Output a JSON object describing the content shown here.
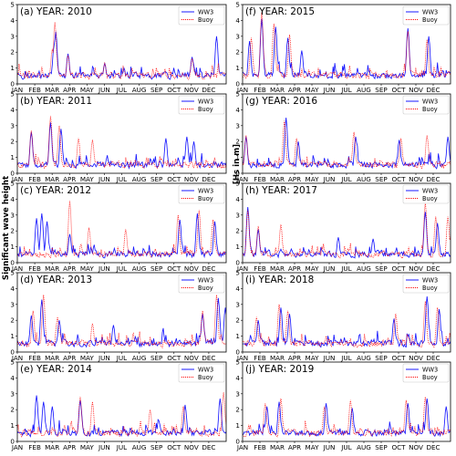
{
  "figure": {
    "ylabel_left": "Significant wave height",
    "ylabel_right": "[Hs in m]"
  },
  "chart_data": [
    {
      "type": "line",
      "title": "(a) YEAR: 2010",
      "categories": [
        "JAN",
        "FEB",
        "MAR",
        "APR",
        "MAY",
        "JUN",
        "JUL",
        "AUG",
        "SEP",
        "OCT",
        "NOV",
        "DEC"
      ],
      "y_ticks": [
        "0",
        "1",
        "2",
        "3",
        "4",
        "5"
      ],
      "ylim": [
        0,
        5
      ],
      "legend": "top-right",
      "series": [
        {
          "name": "WW3",
          "color": "#0000ff",
          "style": "solid",
          "peaks": [
            [
              2.1,
              2.4
            ],
            [
              2.2,
              3.3
            ],
            [
              2.9,
              1.9
            ],
            [
              5.0,
              1.3
            ],
            [
              10.0,
              1.7
            ],
            [
              11.4,
              3.0
            ]
          ]
        },
        {
          "name": "Buoy",
          "color": "#ff0000",
          "style": "dotted",
          "peaks": [
            [
              2.0,
              2.2
            ],
            [
              2.15,
              3.9
            ],
            [
              2.9,
              1.8
            ],
            [
              5.0,
              1.3
            ],
            [
              10.0,
              1.6
            ]
          ]
        }
      ]
    },
    {
      "type": "line",
      "title": "(f) YEAR: 2015",
      "categories": [
        "JAN",
        "FEB",
        "MAR",
        "APR",
        "MAY",
        "JUN",
        "JUL",
        "AUG",
        "SEP",
        "OCT",
        "NOV",
        "DEC"
      ],
      "y_ticks": [
        "0",
        "1",
        "2",
        "3",
        "4",
        "5"
      ],
      "ylim": [
        0,
        5
      ],
      "legend": "top-right",
      "series": [
        {
          "name": "WW3",
          "color": "#0000ff",
          "style": "solid",
          "peaks": [
            [
              0.4,
              2.7
            ],
            [
              1.1,
              4.1
            ],
            [
              1.9,
              3.6
            ],
            [
              2.6,
              2.9
            ],
            [
              3.4,
              2.1
            ],
            [
              9.5,
              3.5
            ],
            [
              10.7,
              3.0
            ]
          ]
        },
        {
          "name": "Buoy",
          "color": "#ff0000",
          "style": "dotted",
          "peaks": [
            [
              0.5,
              2.9
            ],
            [
              1.1,
              4.5
            ],
            [
              1.8,
              3.8
            ],
            [
              2.7,
              3.1
            ],
            [
              9.5,
              3.3
            ],
            [
              10.6,
              2.8
            ]
          ]
        }
      ]
    },
    {
      "type": "line",
      "title": "(b) YEAR: 2011",
      "categories": [
        "JAN",
        "FEB",
        "MAR",
        "APR",
        "MAY",
        "JUN",
        "JUL",
        "AUG",
        "SEP",
        "OCT",
        "NOV",
        "DEC"
      ],
      "y_ticks": [
        "0",
        "1",
        "2",
        "3",
        "4",
        "5"
      ],
      "ylim": [
        0,
        5
      ],
      "legend": "top-right",
      "series": [
        {
          "name": "WW3",
          "color": "#0000ff",
          "style": "solid",
          "peaks": [
            [
              0.8,
              2.6
            ],
            [
              1.9,
              3.2
            ],
            [
              2.5,
              2.8
            ],
            [
              8.5,
              2.2
            ],
            [
              9.7,
              2.3
            ],
            [
              10.1,
              2.0
            ]
          ]
        },
        {
          "name": "Buoy",
          "color": "#ff0000",
          "style": "dotted",
          "peaks": [
            [
              0.8,
              2.7
            ],
            [
              1.9,
              3.6
            ],
            [
              2.4,
              3.0
            ],
            [
              3.5,
              2.2
            ],
            [
              4.3,
              2.1
            ]
          ]
        }
      ]
    },
    {
      "type": "line",
      "title": "(g) YEAR: 2016",
      "categories": [
        "JAN",
        "FEB",
        "MAR",
        "APR",
        "MAY",
        "JUN",
        "JUL",
        "AUG",
        "SEP",
        "OCT",
        "NOV",
        "DEC"
      ],
      "y_ticks": [
        "0",
        "1",
        "2",
        "3",
        "4",
        "5"
      ],
      "ylim": [
        0,
        5
      ],
      "legend": "top-right",
      "series": [
        {
          "name": "WW3",
          "color": "#0000ff",
          "style": "solid",
          "peaks": [
            [
              0.2,
              2.3
            ],
            [
              2.5,
              3.5
            ],
            [
              3.2,
              2.0
            ],
            [
              6.5,
              2.3
            ],
            [
              9.0,
              2.1
            ],
            [
              11.8,
              2.3
            ]
          ]
        },
        {
          "name": "Buoy",
          "color": "#ff0000",
          "style": "dotted",
          "peaks": [
            [
              0.2,
              2.4
            ],
            [
              2.4,
              3.3
            ],
            [
              3.1,
              2.2
            ],
            [
              6.4,
              2.6
            ],
            [
              9.1,
              2.2
            ],
            [
              10.6,
              2.4
            ]
          ]
        }
      ]
    },
    {
      "type": "line",
      "title": "(c) YEAR: 2012",
      "categories": [
        "JAN",
        "FEB",
        "MAR",
        "APR",
        "MAY",
        "JUN",
        "JUL",
        "AUG",
        "SEP",
        "OCT",
        "NOV",
        "DEC"
      ],
      "y_ticks": [
        "0",
        "1",
        "2",
        "3",
        "4",
        "5"
      ],
      "ylim": [
        0,
        5
      ],
      "legend": "top-right",
      "series": [
        {
          "name": "WW3",
          "color": "#0000ff",
          "style": "solid",
          "peaks": [
            [
              1.1,
              2.8
            ],
            [
              1.4,
              3.1
            ],
            [
              1.7,
              2.6
            ],
            [
              3.0,
              1.8
            ],
            [
              9.3,
              2.7
            ],
            [
              10.3,
              3.1
            ],
            [
              11.3,
              2.6
            ]
          ]
        },
        {
          "name": "Buoy",
          "color": "#ff0000",
          "style": "dotted",
          "peaks": [
            [
              3.0,
              3.9
            ],
            [
              4.1,
              2.2
            ],
            [
              6.2,
              2.1
            ],
            [
              9.2,
              3.0
            ],
            [
              10.4,
              3.3
            ],
            [
              11.2,
              2.7
            ]
          ]
        }
      ]
    },
    {
      "type": "line",
      "title": "(h) YEAR: 2017",
      "categories": [
        "JAN",
        "FEB",
        "MAR",
        "APR",
        "MAY",
        "JUN",
        "JUL",
        "AUG",
        "SEP",
        "OCT",
        "NOV",
        "DEC"
      ],
      "y_ticks": [
        "0",
        "1",
        "2",
        "3",
        "4",
        "5"
      ],
      "ylim": [
        0,
        5
      ],
      "legend": "top-right",
      "series": [
        {
          "name": "WW3",
          "color": "#0000ff",
          "style": "solid",
          "peaks": [
            [
              0.3,
              3.5
            ],
            [
              0.9,
              2.1
            ],
            [
              5.5,
              1.6
            ],
            [
              7.5,
              1.5
            ],
            [
              10.5,
              3.2
            ],
            [
              11.2,
              2.5
            ]
          ]
        },
        {
          "name": "Buoy",
          "color": "#ff0000",
          "style": "dotted",
          "peaks": [
            [
              0.3,
              3.3
            ],
            [
              0.9,
              2.3
            ],
            [
              2.2,
              2.4
            ],
            [
              10.5,
              3.8
            ],
            [
              11.1,
              2.9
            ],
            [
              11.8,
              2.9
            ]
          ]
        }
      ]
    },
    {
      "type": "line",
      "title": "(d) YEAR: 2013",
      "categories": [
        "JAN",
        "FEB",
        "MAR",
        "APR",
        "MAY",
        "JUN",
        "JUL",
        "AUG",
        "SEP",
        "OCT",
        "NOV",
        "DEC"
      ],
      "y_ticks": [
        "0",
        "1",
        "2",
        "3",
        "4",
        "5"
      ],
      "ylim": [
        0,
        5
      ],
      "legend": "top-right",
      "series": [
        {
          "name": "WW3",
          "color": "#0000ff",
          "style": "solid",
          "peaks": [
            [
              0.8,
              2.3
            ],
            [
              1.4,
              3.3
            ],
            [
              2.4,
              2.0
            ],
            [
              5.5,
              1.7
            ],
            [
              10.6,
              2.4
            ],
            [
              11.5,
              3.4
            ],
            [
              11.9,
              2.8
            ]
          ]
        },
        {
          "name": "Buoy",
          "color": "#ff0000",
          "style": "dotted",
          "peaks": [
            [
              0.9,
              2.6
            ],
            [
              1.5,
              3.6
            ],
            [
              2.3,
              2.2
            ],
            [
              4.3,
              1.8
            ],
            [
              10.6,
              2.6
            ],
            [
              11.4,
              3.6
            ]
          ]
        }
      ]
    },
    {
      "type": "line",
      "title": "(i) YEAR: 2018",
      "categories": [
        "JAN",
        "FEB",
        "MAR",
        "APR",
        "MAY",
        "JUN",
        "JUL",
        "AUG",
        "SEP",
        "OCT",
        "NOV",
        "DEC"
      ],
      "y_ticks": [
        "0",
        "1",
        "2",
        "3",
        "4",
        "5"
      ],
      "ylim": [
        0,
        5
      ],
      "legend": "top-right",
      "series": [
        {
          "name": "WW3",
          "color": "#0000ff",
          "style": "solid",
          "peaks": [
            [
              0.9,
              2.0
            ],
            [
              2.2,
              2.8
            ],
            [
              2.7,
              2.4
            ],
            [
              8.7,
              2.1
            ],
            [
              10.6,
              3.5
            ],
            [
              11.3,
              2.7
            ]
          ]
        },
        {
          "name": "Buoy",
          "color": "#ff0000",
          "style": "dotted",
          "peaks": [
            [
              0.8,
              2.2
            ],
            [
              2.1,
              3.0
            ],
            [
              2.6,
              2.6
            ],
            [
              8.8,
              2.4
            ],
            [
              10.5,
              3.2
            ],
            [
              11.2,
              2.8
            ]
          ]
        }
      ]
    },
    {
      "type": "line",
      "title": "(e) YEAR: 2014",
      "categories": [
        "JAN",
        "FEB",
        "MAR",
        "APR",
        "MAY",
        "JUN",
        "JUL",
        "AUG",
        "SEP",
        "OCT",
        "NOV",
        "DEC"
      ],
      "y_ticks": [
        "0",
        "1",
        "2",
        "3",
        "4",
        "5"
      ],
      "ylim": [
        0,
        5
      ],
      "legend": "top-right",
      "series": [
        {
          "name": "WW3",
          "color": "#0000ff",
          "style": "solid",
          "peaks": [
            [
              1.1,
              2.9
            ],
            [
              1.5,
              2.5
            ],
            [
              2.0,
              2.2
            ],
            [
              3.6,
              2.6
            ],
            [
              9.6,
              2.3
            ],
            [
              11.6,
              2.7
            ]
          ]
        },
        {
          "name": "Buoy",
          "color": "#ff0000",
          "style": "dotted",
          "peaks": [
            [
              3.6,
              2.8
            ],
            [
              4.3,
              2.5
            ],
            [
              7.6,
              2.0
            ],
            [
              9.5,
              2.2
            ],
            [
              11.8,
              3.1
            ]
          ]
        }
      ]
    },
    {
      "type": "line",
      "title": "(j) YEAR: 2019",
      "categories": [
        "JAN",
        "FEB",
        "MAR",
        "APR",
        "MAY",
        "JUN",
        "JUL",
        "AUG",
        "SEP",
        "OCT",
        "NOV",
        "DEC"
      ],
      "y_ticks": [
        "0",
        "1",
        "2",
        "3",
        "4",
        "5"
      ],
      "ylim": [
        0,
        5
      ],
      "legend": "top-right",
      "series": [
        {
          "name": "WW3",
          "color": "#0000ff",
          "style": "solid",
          "peaks": [
            [
              1.4,
              2.2
            ],
            [
              2.1,
              2.5
            ],
            [
              4.8,
              2.4
            ],
            [
              6.3,
              2.1
            ],
            [
              9.5,
              2.4
            ],
            [
              10.6,
              2.7
            ],
            [
              11.7,
              2.2
            ]
          ]
        },
        {
          "name": "Buoy",
          "color": "#ff0000",
          "style": "dotted",
          "peaks": [
            [
              1.3,
              2.4
            ],
            [
              2.2,
              2.7
            ],
            [
              4.7,
              2.2
            ],
            [
              6.2,
              2.6
            ],
            [
              9.4,
              2.6
            ],
            [
              10.5,
              2.8
            ]
          ]
        }
      ]
    }
  ]
}
